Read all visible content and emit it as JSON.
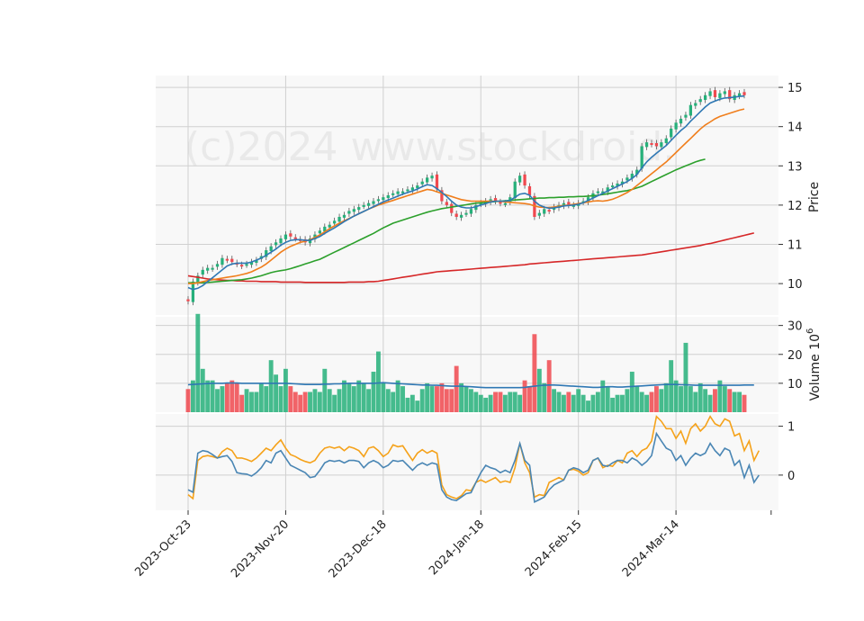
{
  "chart_data": {
    "type": "candlestick",
    "watermark": "(c)2024 www.stockdroid.",
    "colors": {
      "up": "#26b07a",
      "down": "#f0494f",
      "ma_fast": "#2f78b4",
      "ma_mid": "#f07e1c",
      "ma_slow": "#2ca02c",
      "ma_long": "#d62728",
      "vol_ma": "#2f78b4",
      "osc_a": "#4a86b4",
      "osc_b": "#f5a21a",
      "grid": "#d0d0d0",
      "panel_bg": "#f8f8f8"
    },
    "x_ticks": [
      {
        "label": "2023-Oct-23",
        "index": 0
      },
      {
        "label": "2023-Nov-20",
        "index": 20
      },
      {
        "label": "2023-Dec-18",
        "index": 40
      },
      {
        "label": "2024-Jan-18",
        "index": 60
      },
      {
        "label": "2024-Feb-15",
        "index": 80
      },
      {
        "label": "2024-Mar-14",
        "index": 100
      }
    ],
    "price_panel": {
      "ylabel": "Price",
      "ylim": [
        9.2,
        15.3
      ],
      "yticks": [
        10,
        11,
        12,
        13,
        14,
        15
      ],
      "close": [
        9.55,
        10.05,
        10.2,
        10.35,
        10.4,
        10.4,
        10.5,
        10.65,
        10.6,
        10.55,
        10.5,
        10.45,
        10.5,
        10.55,
        10.6,
        10.7,
        10.85,
        10.95,
        11.05,
        11.15,
        11.25,
        11.2,
        11.15,
        11.1,
        11.05,
        11.15,
        11.25,
        11.35,
        11.45,
        11.5,
        11.6,
        11.7,
        11.75,
        11.85,
        11.9,
        11.95,
        12.0,
        12.05,
        12.1,
        12.15,
        12.2,
        12.25,
        12.3,
        12.35,
        12.35,
        12.4,
        12.45,
        12.5,
        12.6,
        12.7,
        12.75,
        12.4,
        12.1,
        12.0,
        11.8,
        11.7,
        11.75,
        11.8,
        11.9,
        12.0,
        12.05,
        12.1,
        12.15,
        12.1,
        12.05,
        12.05,
        12.2,
        12.6,
        12.75,
        12.5,
        12.25,
        11.7,
        11.8,
        11.9,
        11.85,
        11.95,
        12.0,
        12.05,
        12.0,
        12.0,
        12.05,
        12.1,
        12.2,
        12.3,
        12.35,
        12.35,
        12.45,
        12.5,
        12.55,
        12.6,
        12.7,
        12.8,
        12.9,
        13.5,
        13.6,
        13.55,
        13.5,
        13.6,
        13.7,
        13.95,
        14.1,
        14.2,
        14.3,
        14.55,
        14.6,
        14.7,
        14.8,
        14.9,
        14.75,
        14.85,
        14.9,
        14.7,
        14.8,
        14.85,
        14.8
      ],
      "ma_fast": [
        9.9,
        9.85,
        9.88,
        9.95,
        10.05,
        10.15,
        10.25,
        10.35,
        10.45,
        10.5,
        10.52,
        10.52,
        10.52,
        10.55,
        10.6,
        10.65,
        10.72,
        10.8,
        10.88,
        10.98,
        11.05,
        11.1,
        11.12,
        11.12,
        11.1,
        11.1,
        11.15,
        11.2,
        11.28,
        11.35,
        11.42,
        11.5,
        11.58,
        11.65,
        11.72,
        11.78,
        11.84,
        11.9,
        11.96,
        12.02,
        12.08,
        12.13,
        12.18,
        12.23,
        12.28,
        12.32,
        12.36,
        12.41,
        12.47,
        12.52,
        12.5,
        12.42,
        12.32,
        12.22,
        12.1,
        12.0,
        11.95,
        11.93,
        11.93,
        11.96,
        12.0,
        12.04,
        12.08,
        12.1,
        12.1,
        12.1,
        12.12,
        12.2,
        12.28,
        12.3,
        12.25,
        12.1,
        12.0,
        11.95,
        11.92,
        11.93,
        11.95,
        11.98,
        11.99,
        12.0,
        12.02,
        12.06,
        12.12,
        12.18,
        12.24,
        12.3,
        12.36,
        12.42,
        12.48,
        12.54,
        12.6,
        12.68,
        12.78,
        12.95,
        13.1,
        13.22,
        13.32,
        13.42,
        13.52,
        13.65,
        13.78,
        13.9,
        14.0,
        14.14,
        14.26,
        14.38,
        14.5,
        14.6,
        14.65,
        14.7,
        14.73,
        14.74,
        14.75,
        14.77,
        14.78
      ],
      "ma_mid": [
        10.0,
        10.0,
        10.02,
        10.05,
        10.08,
        10.1,
        10.12,
        10.14,
        10.16,
        10.18,
        10.2,
        10.23,
        10.26,
        10.3,
        10.36,
        10.42,
        10.5,
        10.6,
        10.7,
        10.8,
        10.88,
        10.95,
        11.0,
        11.05,
        11.08,
        11.12,
        11.18,
        11.24,
        11.32,
        11.4,
        11.47,
        11.54,
        11.6,
        11.66,
        11.72,
        11.78,
        11.84,
        11.9,
        11.95,
        12.0,
        12.04,
        12.08,
        12.12,
        12.16,
        12.2,
        12.24,
        12.28,
        12.32,
        12.36,
        12.4,
        12.38,
        12.34,
        12.3,
        12.26,
        12.22,
        12.18,
        12.14,
        12.12,
        12.1,
        12.1,
        12.1,
        12.1,
        12.1,
        12.1,
        12.1,
        12.08,
        12.07,
        12.06,
        12.05,
        12.04,
        12.02,
        11.98,
        11.95,
        11.94,
        11.94,
        11.95,
        11.97,
        11.99,
        12.0,
        12.02,
        12.04,
        12.06,
        12.08,
        12.1,
        12.11,
        12.1,
        12.12,
        12.15,
        12.2,
        12.26,
        12.32,
        12.4,
        12.5,
        12.6,
        12.7,
        12.8,
        12.9,
        13.0,
        13.1,
        13.22,
        13.34,
        13.46,
        13.58,
        13.7,
        13.82,
        13.94,
        14.04,
        14.12,
        14.2,
        14.26,
        14.3,
        14.34,
        14.38,
        14.42,
        14.45
      ],
      "ma_slow": [
        10.02,
        10.02,
        10.02,
        10.02,
        10.03,
        10.04,
        10.05,
        10.06,
        10.07,
        10.08,
        10.09,
        10.1,
        10.12,
        10.14,
        10.17,
        10.2,
        10.24,
        10.28,
        10.31,
        10.33,
        10.35,
        10.38,
        10.42,
        10.46,
        10.5,
        10.54,
        10.58,
        10.62,
        10.68,
        10.74,
        10.8,
        10.86,
        10.92,
        10.98,
        11.04,
        11.1,
        11.16,
        11.22,
        11.28,
        11.35,
        11.42,
        11.48,
        11.54,
        11.58,
        11.62,
        11.66,
        11.7,
        11.74,
        11.78,
        11.82,
        11.85,
        11.88,
        11.91,
        11.93,
        11.95,
        11.97,
        11.99,
        12.01,
        12.03,
        12.05,
        12.06,
        12.07,
        12.08,
        12.09,
        12.1,
        12.11,
        12.12,
        12.13,
        12.14,
        12.15,
        12.16,
        12.17,
        12.18,
        12.18,
        12.19,
        12.19,
        12.2,
        12.2,
        12.21,
        12.21,
        12.22,
        12.22,
        12.23,
        12.24,
        12.25,
        12.27,
        12.29,
        12.31,
        12.33,
        12.35,
        12.37,
        12.4,
        12.44,
        12.48,
        12.54,
        12.6,
        12.66,
        12.72,
        12.78,
        12.84,
        12.9,
        12.95,
        13.0,
        13.05,
        13.1,
        13.14,
        13.17
      ],
      "ma_long": [
        10.2,
        10.18,
        10.16,
        10.14,
        10.12,
        10.11,
        10.1,
        10.09,
        10.08,
        10.08,
        10.07,
        10.07,
        10.06,
        10.06,
        10.06,
        10.05,
        10.05,
        10.05,
        10.05,
        10.04,
        10.04,
        10.04,
        10.04,
        10.04,
        10.03,
        10.03,
        10.03,
        10.03,
        10.03,
        10.03,
        10.03,
        10.03,
        10.03,
        10.04,
        10.04,
        10.04,
        10.04,
        10.05,
        10.05,
        10.06,
        10.08,
        10.1,
        10.12,
        10.14,
        10.16,
        10.18,
        10.2,
        10.22,
        10.24,
        10.26,
        10.28,
        10.3,
        10.31,
        10.32,
        10.33,
        10.34,
        10.35,
        10.36,
        10.37,
        10.38,
        10.39,
        10.4,
        10.41,
        10.42,
        10.43,
        10.44,
        10.45,
        10.46,
        10.47,
        10.48,
        10.5,
        10.51,
        10.52,
        10.53,
        10.54,
        10.55,
        10.56,
        10.57,
        10.58,
        10.59,
        10.6,
        10.61,
        10.62,
        10.63,
        10.64,
        10.65,
        10.66,
        10.67,
        10.68,
        10.69,
        10.7,
        10.71,
        10.72,
        10.73,
        10.75,
        10.77,
        10.79,
        10.81,
        10.83,
        10.85,
        10.87,
        10.89,
        10.91,
        10.93,
        10.95,
        10.97,
        11.0,
        11.02,
        11.05,
        11.08,
        11.11,
        11.14,
        11.17,
        11.2,
        11.23,
        11.26,
        11.29
      ]
    },
    "volume_panel": {
      "ylabel": "Volume  10",
      "ylabel_exp": "6",
      "ylim": [
        0,
        33
      ],
      "yticks": [
        10,
        20,
        30
      ],
      "volume": [
        8,
        11,
        34,
        15,
        11,
        11,
        8,
        9,
        10,
        11,
        10,
        6,
        8,
        7,
        7,
        10,
        9,
        18,
        13,
        9,
        15,
        9,
        7,
        6,
        7,
        7,
        8,
        7,
        15,
        8,
        6,
        8,
        11,
        10,
        9,
        11,
        10,
        8,
        14,
        21,
        10,
        8,
        7,
        11,
        9,
        5,
        6,
        4,
        8,
        10,
        9,
        9,
        10,
        8,
        8,
        16,
        10,
        9,
        8,
        7,
        6,
        5,
        6,
        7,
        7,
        6,
        7,
        7,
        6,
        11,
        9,
        27,
        15,
        10,
        18,
        8,
        7,
        6,
        7,
        6,
        8,
        6,
        4,
        6,
        7,
        11,
        9,
        5,
        6,
        6,
        8,
        14,
        9,
        7,
        6,
        7,
        9,
        8,
        10,
        18,
        11,
        9,
        24,
        9,
        7,
        10,
        8,
        6,
        8,
        11,
        9,
        8,
        7,
        7,
        6,
        10,
        9,
        14
      ],
      "vol_ma": [
        9.5,
        9.6,
        9.7,
        9.8,
        9.9,
        10.0,
        10.0,
        10.0,
        10.1,
        10.1,
        10.1,
        10.0,
        10.0,
        10.0,
        10.0,
        10.0,
        10.0,
        10.0,
        10.0,
        10.0,
        10.0,
        9.9,
        9.8,
        9.7,
        9.6,
        9.6,
        9.6,
        9.6,
        9.7,
        9.7,
        9.8,
        9.8,
        9.9,
        10.0,
        10.0,
        10.0,
        10.0,
        10.0,
        10.0,
        10.1,
        10.2,
        10.1,
        10.0,
        9.9,
        9.8,
        9.7,
        9.6,
        9.5,
        9.4,
        9.4,
        9.3,
        9.3,
        9.2,
        9.1,
        9.0,
        9.0,
        9.0,
        8.9,
        8.8,
        8.7,
        8.6,
        8.5,
        8.5,
        8.5,
        8.5,
        8.5,
        8.5,
        8.5,
        8.5,
        8.6,
        8.8,
        9.0,
        9.2,
        9.3,
        9.4,
        9.4,
        9.3,
        9.2,
        9.1,
        9.0,
        8.9,
        8.8,
        8.7,
        8.6,
        8.6,
        8.7,
        8.8,
        8.8,
        8.7,
        8.7,
        8.8,
        8.9,
        9.0,
        9.1,
        9.2,
        9.3,
        9.4,
        9.5,
        9.6,
        9.6,
        9.6,
        9.5,
        9.5,
        9.4,
        9.3,
        9.3,
        9.3,
        9.3,
        9.3,
        9.3,
        9.3,
        9.3,
        9.3,
        9.3,
        9.4,
        9.4,
        9.4
      ],
      "up_days": "derived from price up/down"
    },
    "osc_panel": {
      "ylim": [
        -0.72,
        1.25
      ],
      "yticks": [
        0,
        1
      ],
      "series_a": [
        -0.3,
        -0.35,
        0.45,
        0.5,
        0.48,
        0.42,
        0.35,
        0.38,
        0.4,
        0.28,
        0.05,
        0.03,
        0.02,
        -0.02,
        0.05,
        0.15,
        0.3,
        0.25,
        0.45,
        0.5,
        0.35,
        0.2,
        0.15,
        0.1,
        0.05,
        -0.05,
        -0.03,
        0.1,
        0.25,
        0.3,
        0.28,
        0.3,
        0.25,
        0.3,
        0.3,
        0.28,
        0.15,
        0.25,
        0.3,
        0.25,
        0.15,
        0.2,
        0.3,
        0.28,
        0.3,
        0.2,
        0.1,
        0.2,
        0.25,
        0.2,
        0.25,
        0.22,
        -0.3,
        -0.45,
        -0.5,
        -0.52,
        -0.45,
        -0.38,
        -0.36,
        -0.15,
        0.05,
        0.2,
        0.15,
        0.12,
        0.05,
        0.1,
        0.05,
        0.3,
        0.65,
        0.3,
        0.2,
        -0.55,
        -0.5,
        -0.45,
        -0.3,
        -0.2,
        -0.15,
        -0.1,
        0.1,
        0.15,
        0.12,
        0.05,
        0.1,
        0.3,
        0.35,
        0.2,
        0.18,
        0.25,
        0.3,
        0.3,
        0.25,
        0.35,
        0.3,
        0.2,
        0.28,
        0.4,
        0.85,
        0.7,
        0.55,
        0.5,
        0.3,
        0.4,
        0.2,
        0.35,
        0.45,
        0.4,
        0.45,
        0.65,
        0.5,
        0.4,
        0.55,
        0.5,
        0.2,
        0.3,
        -0.05,
        0.2,
        -0.15,
        0.0
      ],
      "series_b": [
        -0.4,
        -0.48,
        0.3,
        0.38,
        0.4,
        0.38,
        0.35,
        0.48,
        0.55,
        0.5,
        0.35,
        0.35,
        0.32,
        0.28,
        0.35,
        0.45,
        0.55,
        0.5,
        0.62,
        0.72,
        0.55,
        0.42,
        0.38,
        0.32,
        0.28,
        0.25,
        0.3,
        0.45,
        0.55,
        0.58,
        0.55,
        0.58,
        0.5,
        0.58,
        0.55,
        0.5,
        0.38,
        0.55,
        0.58,
        0.5,
        0.38,
        0.45,
        0.62,
        0.58,
        0.6,
        0.45,
        0.3,
        0.45,
        0.52,
        0.45,
        0.5,
        0.45,
        -0.2,
        -0.4,
        -0.45,
        -0.48,
        -0.42,
        -0.3,
        -0.32,
        -0.15,
        -0.1,
        -0.15,
        -0.1,
        -0.05,
        -0.15,
        -0.12,
        -0.15,
        0.15,
        0.65,
        0.25,
        0.05,
        -0.45,
        -0.4,
        -0.42,
        -0.15,
        -0.1,
        -0.05,
        -0.1,
        0.1,
        0.12,
        0.08,
        0.0,
        0.05,
        0.3,
        0.35,
        0.15,
        0.2,
        0.18,
        0.3,
        0.25,
        0.45,
        0.5,
        0.38,
        0.5,
        0.55,
        0.7,
        1.2,
        1.1,
        0.95,
        0.95,
        0.75,
        0.9,
        0.65,
        0.95,
        1.05,
        0.9,
        1.0,
        1.2,
        1.05,
        1.0,
        1.15,
        1.1,
        0.8,
        0.85,
        0.5,
        0.7,
        0.3,
        0.5
      ]
    }
  }
}
